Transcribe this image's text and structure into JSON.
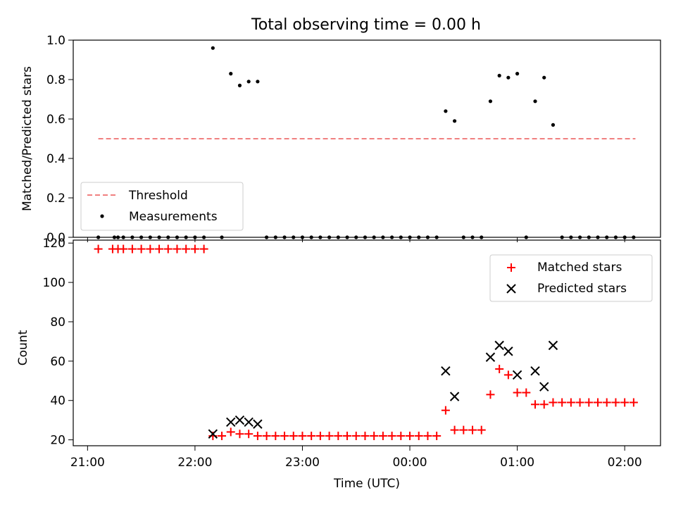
{
  "chart_data": [
    {
      "type": "scatter",
      "title": "Total observing time = 0.00 h",
      "xlabel": "",
      "ylabel": "Matched/Predicted stars",
      "ylim": [
        0,
        1.0
      ],
      "yticks": [
        "0.0",
        "0.2",
        "0.4",
        "0.6",
        "0.8",
        "1.0"
      ],
      "legend_position": "lower-left",
      "threshold": {
        "name": "Threshold",
        "value": 0.5,
        "x_range": [
          "21:06",
          "02:06"
        ],
        "color": "#f08080"
      },
      "series": [
        {
          "name": "Measurements",
          "color": "#000000",
          "points": [
            [
              "21:06",
              0
            ],
            [
              "21:15",
              0
            ],
            [
              "21:17",
              0
            ],
            [
              "21:20",
              0
            ],
            [
              "21:25",
              0
            ],
            [
              "21:30",
              0
            ],
            [
              "21:35",
              0
            ],
            [
              "21:40",
              0
            ],
            [
              "21:45",
              0
            ],
            [
              "21:50",
              0
            ],
            [
              "21:55",
              0
            ],
            [
              "22:00",
              0
            ],
            [
              "22:05",
              0
            ],
            [
              "22:10",
              0.96
            ],
            [
              "22:15",
              0
            ],
            [
              "22:20",
              0.83
            ],
            [
              "22:25",
              0.77
            ],
            [
              "22:30",
              0.79
            ],
            [
              "22:35",
              0.79
            ],
            [
              "22:40",
              0
            ],
            [
              "22:45",
              0
            ],
            [
              "22:50",
              0
            ],
            [
              "22:55",
              0
            ],
            [
              "23:00",
              0
            ],
            [
              "23:05",
              0
            ],
            [
              "23:10",
              0
            ],
            [
              "23:15",
              0
            ],
            [
              "23:20",
              0
            ],
            [
              "23:25",
              0
            ],
            [
              "23:30",
              0
            ],
            [
              "23:35",
              0
            ],
            [
              "23:40",
              0
            ],
            [
              "23:45",
              0
            ],
            [
              "23:50",
              0
            ],
            [
              "23:55",
              0
            ],
            [
              "00:00",
              0
            ],
            [
              "00:05",
              0
            ],
            [
              "00:10",
              0
            ],
            [
              "00:15",
              0
            ],
            [
              "00:20",
              0.64
            ],
            [
              "00:25",
              0.59
            ],
            [
              "00:30",
              0
            ],
            [
              "00:35",
              0
            ],
            [
              "00:40",
              0
            ],
            [
              "00:45",
              0.69
            ],
            [
              "00:50",
              0.82
            ],
            [
              "00:55",
              0.81
            ],
            [
              "01:00",
              0.83
            ],
            [
              "01:05",
              0
            ],
            [
              "01:10",
              0.69
            ],
            [
              "01:15",
              0.81
            ],
            [
              "01:20",
              0.57
            ],
            [
              "01:25",
              0
            ],
            [
              "01:30",
              0
            ],
            [
              "01:35",
              0
            ],
            [
              "01:40",
              0
            ],
            [
              "01:45",
              0
            ],
            [
              "01:50",
              0
            ],
            [
              "01:55",
              0
            ],
            [
              "02:00",
              0
            ],
            [
              "02:05",
              0
            ]
          ]
        }
      ]
    },
    {
      "type": "scatter",
      "title": "",
      "xlabel": "Time (UTC)",
      "ylabel": "Count",
      "ylim": [
        17,
        121.5
      ],
      "yticks": [
        "20",
        "40",
        "60",
        "80",
        "100",
        "120"
      ],
      "xlim": [
        "20:52",
        "02:20"
      ],
      "xticks": [
        "21:00",
        "22:00",
        "23:00",
        "00:00",
        "01:00",
        "02:00"
      ],
      "legend_position": "upper-right",
      "series": [
        {
          "name": "Matched stars",
          "marker": "plus",
          "color": "#ff0000",
          "points": [
            [
              "21:06",
              117
            ],
            [
              "21:14",
              117
            ],
            [
              "21:17",
              117
            ],
            [
              "21:20",
              117
            ],
            [
              "21:25",
              117
            ],
            [
              "21:30",
              117
            ],
            [
              "21:35",
              117
            ],
            [
              "21:40",
              117
            ],
            [
              "21:45",
              117
            ],
            [
              "21:50",
              117
            ],
            [
              "21:55",
              117
            ],
            [
              "22:00",
              117
            ],
            [
              "22:05",
              117
            ],
            [
              "22:10",
              22
            ],
            [
              "22:15",
              22
            ],
            [
              "22:20",
              24
            ],
            [
              "22:25",
              23
            ],
            [
              "22:30",
              23
            ],
            [
              "22:35",
              22
            ],
            [
              "22:40",
              22
            ],
            [
              "22:45",
              22
            ],
            [
              "22:50",
              22
            ],
            [
              "22:55",
              22
            ],
            [
              "23:00",
              22
            ],
            [
              "23:05",
              22
            ],
            [
              "23:10",
              22
            ],
            [
              "23:15",
              22
            ],
            [
              "23:20",
              22
            ],
            [
              "23:25",
              22
            ],
            [
              "23:30",
              22
            ],
            [
              "23:35",
              22
            ],
            [
              "23:40",
              22
            ],
            [
              "23:45",
              22
            ],
            [
              "23:50",
              22
            ],
            [
              "23:55",
              22
            ],
            [
              "00:00",
              22
            ],
            [
              "00:05",
              22
            ],
            [
              "00:10",
              22
            ],
            [
              "00:15",
              22
            ],
            [
              "00:20",
              35
            ],
            [
              "00:25",
              25
            ],
            [
              "00:30",
              25
            ],
            [
              "00:35",
              25
            ],
            [
              "00:40",
              25
            ],
            [
              "00:45",
              43
            ],
            [
              "00:50",
              56
            ],
            [
              "00:55",
              53
            ],
            [
              "01:00",
              44
            ],
            [
              "01:05",
              44
            ],
            [
              "01:10",
              38
            ],
            [
              "01:15",
              38
            ],
            [
              "01:20",
              39
            ],
            [
              "01:25",
              39
            ],
            [
              "01:30",
              39
            ],
            [
              "01:35",
              39
            ],
            [
              "01:40",
              39
            ],
            [
              "01:45",
              39
            ],
            [
              "01:50",
              39
            ],
            [
              "01:55",
              39
            ],
            [
              "02:00",
              39
            ],
            [
              "02:05",
              39
            ]
          ]
        },
        {
          "name": "Predicted stars",
          "marker": "x",
          "color": "#000000",
          "points": [
            [
              "22:10",
              23
            ],
            [
              "22:20",
              29
            ],
            [
              "22:25",
              30
            ],
            [
              "22:30",
              29
            ],
            [
              "22:35",
              28
            ],
            [
              "00:20",
              55
            ],
            [
              "00:25",
              42
            ],
            [
              "00:45",
              62
            ],
            [
              "00:50",
              68
            ],
            [
              "00:55",
              65
            ],
            [
              "01:00",
              53
            ],
            [
              "01:10",
              55
            ],
            [
              "01:15",
              47
            ],
            [
              "01:20",
              68
            ]
          ]
        }
      ]
    }
  ]
}
